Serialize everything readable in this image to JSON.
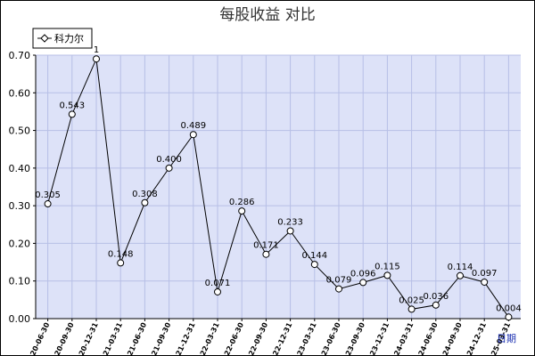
{
  "chart_data": {
    "type": "line",
    "title": "每股收益  对比",
    "xlabel": "日期",
    "ylabel": "",
    "ylim": [
      0,
      0.7
    ],
    "yticks": [
      "0.00",
      "0.10",
      "0.20",
      "0.30",
      "0.40",
      "0.50",
      "0.60",
      "0.70"
    ],
    "grid": true,
    "legend_position": "top-left",
    "categories": [
      "2020-06-30",
      "2020-09-30",
      "2020-12-31",
      "2021-03-31",
      "2021-06-30",
      "2021-09-30",
      "2021-12-31",
      "2022-03-31",
      "2022-06-30",
      "2022-09-30",
      "2022-12-31",
      "2023-03-31",
      "2023-06-30",
      "2023-09-30",
      "2023-12-31",
      "2024-03-31",
      "2024-06-30",
      "2024-09-30",
      "2024-12-31",
      "2025-03-31"
    ],
    "series": [
      {
        "name": "科力尔",
        "color": "#000000",
        "values": [
          0.305,
          0.543,
          0.69,
          0.148,
          0.308,
          0.4,
          0.489,
          0.071,
          0.286,
          0.171,
          0.233,
          0.144,
          0.079,
          0.096,
          0.115,
          0.025,
          0.036,
          0.114,
          0.097,
          0.004
        ],
        "labels": [
          "0.305",
          "0.543",
          "1",
          "0.148",
          "0.308",
          "0.400",
          "0.489",
          "0.071",
          "0.286",
          "0.171",
          "0.233",
          "0.144",
          "0.079",
          "0.096",
          "0.115",
          "0.025",
          "0.036",
          "0.114",
          "0.097",
          "0.004"
        ]
      }
    ],
    "colors": {
      "plot_bg": "#dde2f8",
      "grid": "#b7bfe6",
      "line": "#000000",
      "title": "#333333",
      "xlabel": "#1a2fb0"
    }
  }
}
